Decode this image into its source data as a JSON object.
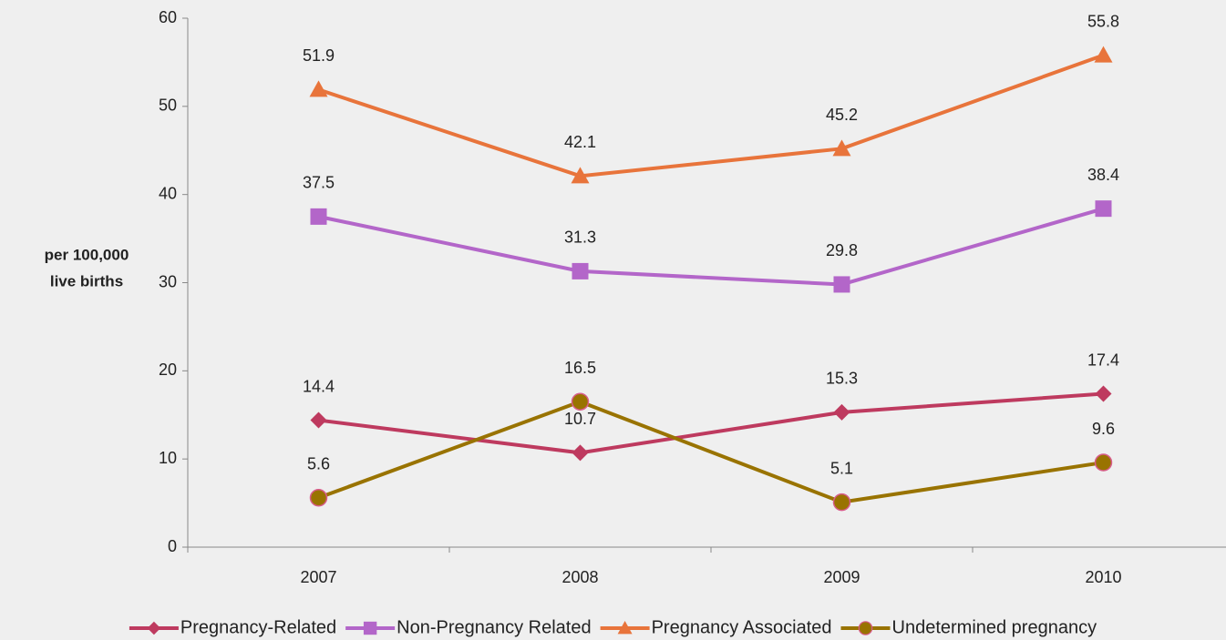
{
  "chart_data": {
    "type": "line",
    "ylabel_lines": [
      "per 100,000",
      "live births"
    ],
    "categories": [
      "2007",
      "2008",
      "2009",
      "2010"
    ],
    "series": [
      {
        "name": "Pregnancy-Related",
        "color": "#be3a5f",
        "marker": "diamond",
        "values": [
          14.4,
          10.7,
          15.3,
          17.4
        ]
      },
      {
        "name": "Non-Pregnancy Related",
        "color": "#b366c9",
        "marker": "square",
        "values": [
          37.5,
          31.3,
          29.8,
          38.4
        ]
      },
      {
        "name": "Pregnancy Associated",
        "color": "#e8743b",
        "marker": "triangle",
        "values": [
          51.9,
          42.1,
          45.2,
          55.8
        ]
      },
      {
        "name": "Undetermined pregnancy",
        "color": "#997300",
        "marker": "circle",
        "marker_edge": "#d85c8a",
        "values": [
          5.6,
          16.5,
          5.1,
          9.6
        ]
      }
    ],
    "ylim": [
      0,
      60
    ],
    "yticks": [
      0,
      10,
      20,
      30,
      40,
      50,
      60
    ],
    "legend": "bottom"
  }
}
